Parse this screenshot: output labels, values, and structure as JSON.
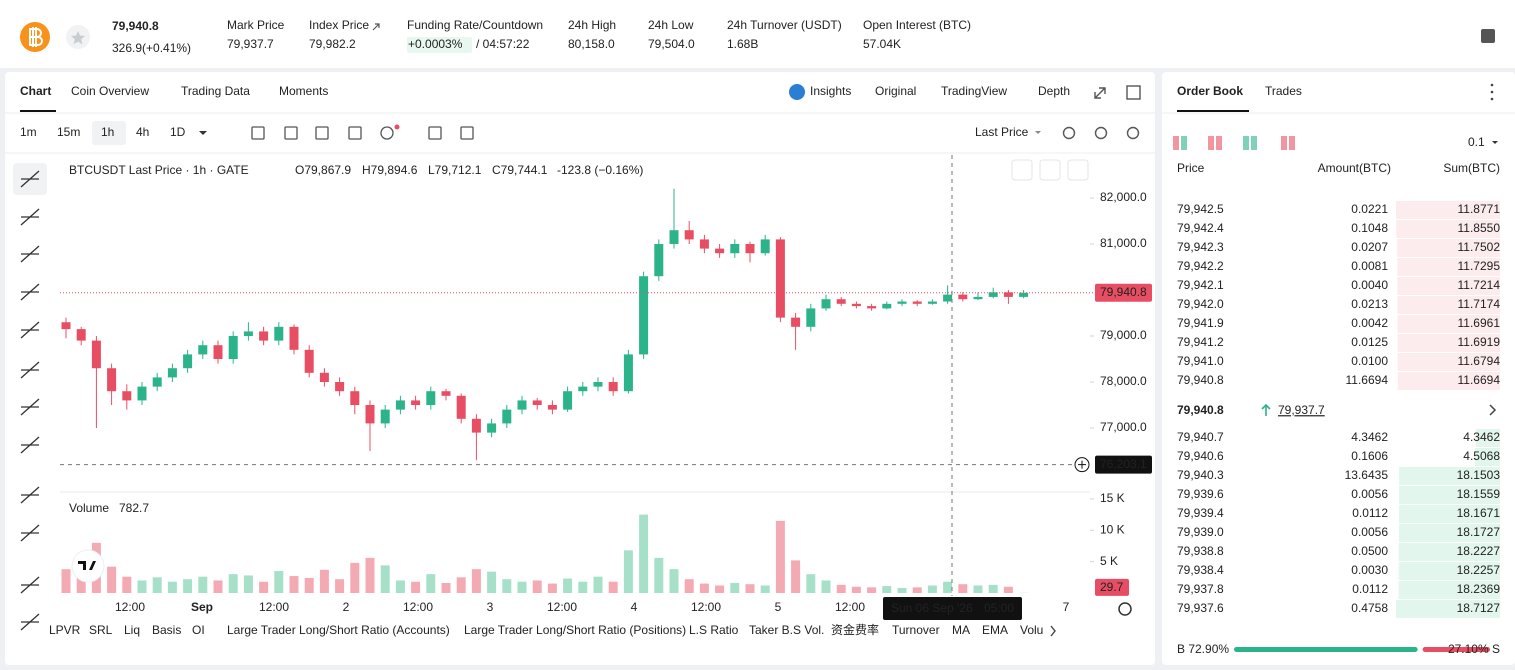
{
  "header": {
    "price": "79,940.8",
    "change": "326.9(+0.41%)",
    "stats": [
      {
        "label": "Mark Price",
        "value": "79,937.7"
      },
      {
        "label": "Index Price",
        "value": "79,982.2"
      },
      {
        "label": "Funding Rate/Countdown",
        "value": "+0.0003%",
        "extra": "/ 04:57:22"
      },
      {
        "label": "24h High",
        "value": "80,158.0"
      },
      {
        "label": "24h Low",
        "value": "79,504.0"
      },
      {
        "label": "24h Turnover (USDT)",
        "value": "1.68B"
      },
      {
        "label": "Open Interest (BTC)",
        "value": "57.04K"
      }
    ]
  },
  "tabs": [
    "Chart",
    "Coin Overview",
    "Trading Data",
    "Moments"
  ],
  "view_tabs": [
    "Insights",
    "Original",
    "TradingView",
    "Depth"
  ],
  "intervals": [
    "1m",
    "15m",
    "1h",
    "4h",
    "1D"
  ],
  "price_source": "Last Price",
  "indicators": [
    "LPVR",
    "SRL",
    "Liq",
    "Basis",
    "OI",
    "Large Trader Long/Short Ratio (Accounts)",
    "Large Trader Long/Short Ratio (Positions)",
    "L.S Ratio",
    "Taker B.S Vol.",
    "资金费率",
    "Turnover",
    "MA",
    "EMA",
    "Volu"
  ],
  "chart_data": {
    "type": "candlestick",
    "title": "BTCUSDT Last Price · 1h · GATE",
    "legend_values": [
      "O79,867.9",
      "H79,894.6",
      "L79,712.1",
      "C79,744.1",
      "-123.8 (−0.16%)"
    ],
    "up_color": "#2bb38a",
    "down_color": "#e84e63",
    "volume_up_color": "#a6e0c8",
    "volume_down_color": "#f4aab3",
    "ylim": [
      75609,
      82935
    ],
    "yticks": [
      {
        "value": 82000,
        "label": "82,000.0"
      },
      {
        "value": 81000,
        "label": "81,000.0"
      },
      {
        "value": 79000,
        "label": "79,000.0"
      },
      {
        "value": 78000,
        "label": "78,000.0"
      },
      {
        "value": 77000,
        "label": "77,000.0"
      }
    ],
    "ohlc": [
      [
        79300,
        79400,
        78950,
        79150
      ],
      [
        79150,
        79200,
        78800,
        78900
      ],
      [
        78900,
        79000,
        77000,
        78300
      ],
      [
        78300,
        78400,
        77500,
        77800
      ],
      [
        77800,
        77950,
        77400,
        77600
      ],
      [
        77600,
        78000,
        77500,
        77900
      ],
      [
        77900,
        78200,
        77800,
        78100
      ],
      [
        78100,
        78400,
        78000,
        78300
      ],
      [
        78300,
        78700,
        78200,
        78600
      ],
      [
        78600,
        78900,
        78500,
        78800
      ],
      [
        78800,
        78900,
        78400,
        78500
      ],
      [
        78500,
        79100,
        78400,
        79000
      ],
      [
        79000,
        79300,
        78900,
        79100
      ],
      [
        79100,
        79200,
        78800,
        78900
      ],
      [
        78900,
        79300,
        78800,
        79200
      ],
      [
        79200,
        79250,
        78600,
        78700
      ],
      [
        78700,
        78800,
        78100,
        78200
      ],
      [
        78200,
        78300,
        77900,
        78000
      ],
      [
        78000,
        78100,
        77700,
        77800
      ],
      [
        77800,
        77900,
        77300,
        77500
      ],
      [
        77500,
        77600,
        76500,
        77100
      ],
      [
        77100,
        77500,
        77000,
        77400
      ],
      [
        77400,
        77700,
        77300,
        77600
      ],
      [
        77600,
        77700,
        77400,
        77500
      ],
      [
        77500,
        77900,
        77400,
        77800
      ],
      [
        77800,
        77850,
        77600,
        77700
      ],
      [
        77700,
        77750,
        77100,
        77200
      ],
      [
        77200,
        77300,
        76300,
        76900
      ],
      [
        76900,
        77200,
        76800,
        77100
      ],
      [
        77100,
        77500,
        77000,
        77400
      ],
      [
        77400,
        77700,
        77300,
        77600
      ],
      [
        77600,
        77650,
        77400,
        77500
      ],
      [
        77500,
        77600,
        77300,
        77400
      ],
      [
        77400,
        77900,
        77350,
        77800
      ],
      [
        77800,
        78000,
        77700,
        77900
      ],
      [
        77900,
        78100,
        77800,
        78000
      ],
      [
        78000,
        78100,
        77700,
        77800
      ],
      [
        77800,
        78700,
        77750,
        78600
      ],
      [
        78600,
        80400,
        78500,
        80300
      ],
      [
        80300,
        81100,
        80200,
        81000
      ],
      [
        81000,
        82200,
        80900,
        81300
      ],
      [
        81300,
        81500,
        81000,
        81100
      ],
      [
        81100,
        81200,
        80800,
        80900
      ],
      [
        80900,
        81000,
        80700,
        80800
      ],
      [
        80800,
        81100,
        80700,
        81000
      ],
      [
        81000,
        81050,
        80600,
        80800
      ],
      [
        80800,
        81200,
        80750,
        81100
      ],
      [
        81100,
        81150,
        79300,
        79400
      ],
      [
        79400,
        79500,
        78700,
        79200
      ],
      [
        79200,
        79700,
        79100,
        79600
      ],
      [
        79600,
        79900,
        79550,
        79800
      ],
      [
        79800,
        79850,
        79650,
        79700
      ],
      [
        79700,
        79750,
        79600,
        79650
      ],
      [
        79650,
        79700,
        79550,
        79600
      ],
      [
        79600,
        79750,
        79580,
        79700
      ],
      [
        79700,
        79800,
        79650,
        79750
      ],
      [
        79750,
        79780,
        79650,
        79700
      ],
      [
        79700,
        79800,
        79680,
        79750
      ],
      [
        79750,
        80100,
        79700,
        79900
      ],
      [
        79900,
        79950,
        79750,
        79800
      ],
      [
        79800,
        79950,
        79780,
        79850
      ],
      [
        79850,
        80050,
        79820,
        79950
      ],
      [
        79950,
        80000,
        79700,
        79850
      ],
      [
        79850,
        80000,
        79820,
        79940.8
      ]
    ],
    "last_price": {
      "value": 79940.8,
      "label": "79,940.8"
    },
    "crosshair_price": {
      "value": 76203.1,
      "label": "76,203.1"
    },
    "crosshair_time": [
      "Sun 06 Sep '26",
      "05:00"
    ],
    "time_labels": [
      "12:00",
      "Sep",
      "12:00",
      "2",
      "12:00",
      "3",
      "12:00",
      "4",
      "12:00",
      "5",
      "12:00",
      null,
      null,
      "7"
    ],
    "volume_title": "Volume",
    "volume_value": "782.7",
    "volume": [
      3800,
      3500,
      8000,
      4200,
      2600,
      2000,
      2500,
      1800,
      2200,
      2600,
      2000,
      3000,
      2800,
      1800,
      3500,
      2700,
      2400,
      3700,
      2200,
      4800,
      5600,
      4400,
      2000,
      1800,
      3000,
      1600,
      2500,
      3800,
      3400,
      2200,
      1800,
      2000,
      1500,
      2300,
      1800,
      2600,
      1800,
      6800,
      12500,
      5600,
      3800,
      2200,
      1500,
      1200,
      1600,
      1400,
      1200,
      11500,
      5200,
      3000,
      2000,
      1300,
      1000,
      900,
      1100,
      800,
      900,
      1200,
      1800,
      1400,
      1200,
      1300,
      1000,
      29.7
    ],
    "volume_ylim": [
      0,
      16100
    ],
    "volume_yticks": [
      {
        "value": 15000,
        "label": "15 K"
      },
      {
        "value": 10000,
        "label": "10 K"
      },
      {
        "value": 5000,
        "label": "5 K"
      }
    ]
  },
  "order_book": {
    "tabs": [
      "Order Book",
      "Trades"
    ],
    "precision": "0.1",
    "columns": [
      "Price",
      "Amount(BTC)",
      "Sum(BTC)"
    ],
    "asks": [
      [
        "79,942.5",
        "0.0221",
        "11.8771"
      ],
      [
        "79,942.4",
        "0.1048",
        "11.8550"
      ],
      [
        "79,942.3",
        "0.0207",
        "11.7502"
      ],
      [
        "79,942.2",
        "0.0081",
        "11.7295"
      ],
      [
        "79,942.1",
        "0.0040",
        "11.7214"
      ],
      [
        "79,942.0",
        "0.0213",
        "11.7174"
      ],
      [
        "79,941.9",
        "0.0042",
        "11.6961"
      ],
      [
        "79,941.2",
        "0.0125",
        "11.6919"
      ],
      [
        "79,941.0",
        "0.0100",
        "11.6794"
      ],
      [
        "79,940.8",
        "11.6694",
        "11.6694"
      ]
    ],
    "mid_price": "79,940.8",
    "mark_price": "79,937.7",
    "bids": [
      [
        "79,940.7",
        "4.3462",
        "4.3462"
      ],
      [
        "79,940.6",
        "0.1606",
        "4.5068"
      ],
      [
        "79,940.3",
        "13.6435",
        "18.1503"
      ],
      [
        "79,939.6",
        "0.0056",
        "18.1559"
      ],
      [
        "79,939.4",
        "0.0112",
        "18.1671"
      ],
      [
        "79,939.0",
        "0.0056",
        "18.1727"
      ],
      [
        "79,938.8",
        "0.0500",
        "18.2227"
      ],
      [
        "79,938.4",
        "0.0030",
        "18.2257"
      ],
      [
        "79,937.8",
        "0.0112",
        "18.2369"
      ],
      [
        "79,937.6",
        "0.4758",
        "18.7127"
      ]
    ],
    "buy": {
      "value": 72.9,
      "label": "B 72.90%"
    },
    "sell": {
      "value": 27.1,
      "label": "27.10% S"
    }
  }
}
